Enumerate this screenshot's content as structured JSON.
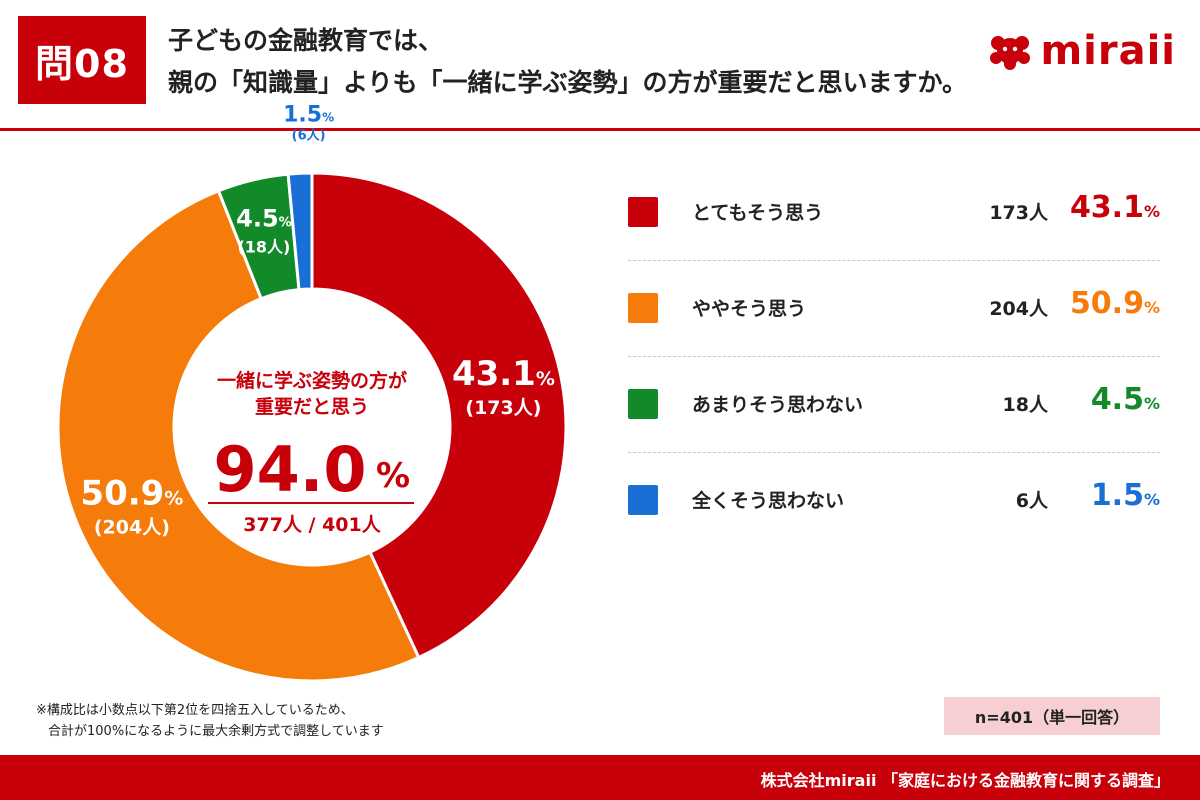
{
  "header": {
    "badge": "問08",
    "title_line1": "子どもの金融教育では、",
    "title_line2": "親の「知識量」よりも「一緒に学ぶ姿勢」の方が重要だと思いますか。",
    "logo_text": "miraii"
  },
  "center": {
    "label_line1": "一緒に学ぶ姿勢の方が",
    "label_line2": "重要だと思う",
    "value": "94.0",
    "unit": "%",
    "count": "377人 / 401人"
  },
  "chart_data": {
    "type": "pie",
    "variant": "donut",
    "categories": [
      "とてもそう思う",
      "ややそう思う",
      "あまりそう思わない",
      "全くそう思わない"
    ],
    "values": [
      43.1,
      50.9,
      4.5,
      1.5
    ],
    "counts": [
      173,
      204,
      18,
      6
    ],
    "value_labels": [
      "43.1",
      "50.9",
      "4.5",
      "1.5"
    ],
    "count_labels": [
      "(173人)",
      "(204人)",
      "(18人)",
      "(6人)"
    ],
    "colors": [
      "#c8000a",
      "#f57c0a",
      "#138a2a",
      "#1a6fd6"
    ],
    "start_angle": "12 o'clock, clockwise"
  },
  "legend": [
    {
      "label": "とてもそう思う",
      "count": "173人",
      "pct": "43.1",
      "color": "#c8000a"
    },
    {
      "label": "ややそう思う",
      "count": "204人",
      "pct": "50.9",
      "color": "#f57c0a"
    },
    {
      "label": "あまりそう思わない",
      "count": "18人",
      "pct": "4.5",
      "color": "#138a2a"
    },
    {
      "label": "全くそう思わない",
      "count": "6人",
      "pct": "1.5",
      "color": "#1a6fd6"
    }
  ],
  "pct_unit": "%",
  "note_line1": "※構成比は小数点以下第2位を四捨五入しているため、",
  "note_line2": "合計が100%になるように最大余剰方式で調整しています",
  "sample_size": "n=401（単一回答）",
  "footer": "株式会社miraii 「家庭における金融教育に関する調査」",
  "colors": {
    "accent": "#c8000a",
    "badge_bg": "#f6cfd2"
  }
}
